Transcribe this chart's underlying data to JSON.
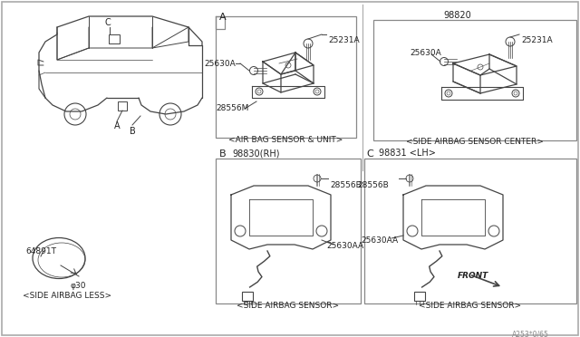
{
  "bg_color": "#ffffff",
  "line_color": "#444444",
  "text_color": "#222222",
  "part_numbers": {
    "A_label": "A",
    "B_label": "B",
    "C_label": "C",
    "part_25231A": "25231A",
    "part_25630A": "25630A",
    "part_28556M": "28556M",
    "part_98820": "98820",
    "part_98830": "98830(RH)",
    "part_98831": "98831 <LH>",
    "part_28556B": "28556B",
    "part_25630AA": "25630AA",
    "part_64891T": "64891T",
    "part_phi30": "φ30",
    "caption_A": "<AIR BAG SENSOR & UNIT>",
    "caption_98820": "<SIDE AIRBAG SENSOR CENTER>",
    "caption_B": "<SIDE AIRBAG SENSOR>",
    "caption_C": "<SIDE AIRBAG SENSOR>",
    "caption_less": "<SIDE AIRBAG LESS>",
    "watermark": "A253*0/65"
  }
}
